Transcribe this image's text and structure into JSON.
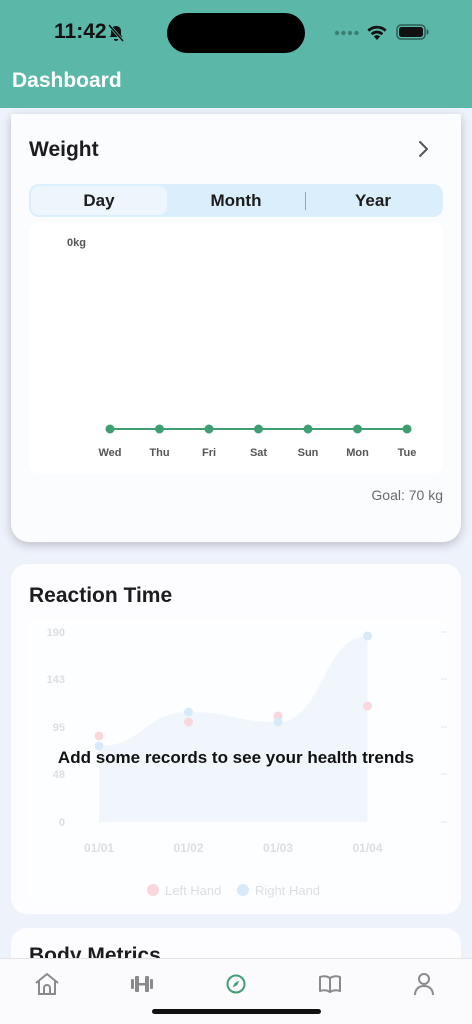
{
  "status_bar": {
    "time": "11:42"
  },
  "header": {
    "title": "Dashboard"
  },
  "weight": {
    "title": "Weight",
    "tabs": [
      "Day",
      "Month",
      "Year"
    ],
    "selected_tab": "Day",
    "goal_label": "Goal: 70 kg",
    "chart_data": {
      "type": "line",
      "title": "",
      "xlabel": "",
      "ylabel": "",
      "y_tick": "0kg",
      "categories": [
        "Wed",
        "Thu",
        "Fri",
        "Sat",
        "Sun",
        "Mon",
        "Tue"
      ],
      "values": [
        0,
        0,
        0,
        0,
        0,
        0,
        0
      ],
      "line_color": "#3f9e72"
    }
  },
  "reaction": {
    "title": "Reaction Time",
    "empty_message": "Add some records to see your health trends",
    "chart_data": {
      "type": "area",
      "x": [
        "01/01",
        "01/02",
        "01/03",
        "01/04"
      ],
      "y_ticks": [
        "190",
        "143",
        "95",
        "48",
        "0"
      ],
      "ylim": [
        0,
        190
      ],
      "series": [
        {
          "name": "Left Hand",
          "values": [
            86,
            100,
            106,
            116
          ],
          "color": "#f4a9b4"
        },
        {
          "name": "Right Hand",
          "values": [
            76,
            110,
            100,
            186
          ],
          "color": "#a8d4f2"
        }
      ],
      "legend": "bottom",
      "faded": true
    }
  },
  "body_metrics": {
    "title": "Body Metrics"
  },
  "tabbar": {
    "items": [
      "home-icon",
      "dumbbell-icon",
      "compass-icon",
      "book-icon",
      "profile-icon"
    ],
    "active": "compass-icon",
    "active_color": "#3f9e72"
  },
  "colors": {
    "header": "#5bb8a8",
    "accent": "#3f9e72",
    "background": "#eef2fb"
  }
}
